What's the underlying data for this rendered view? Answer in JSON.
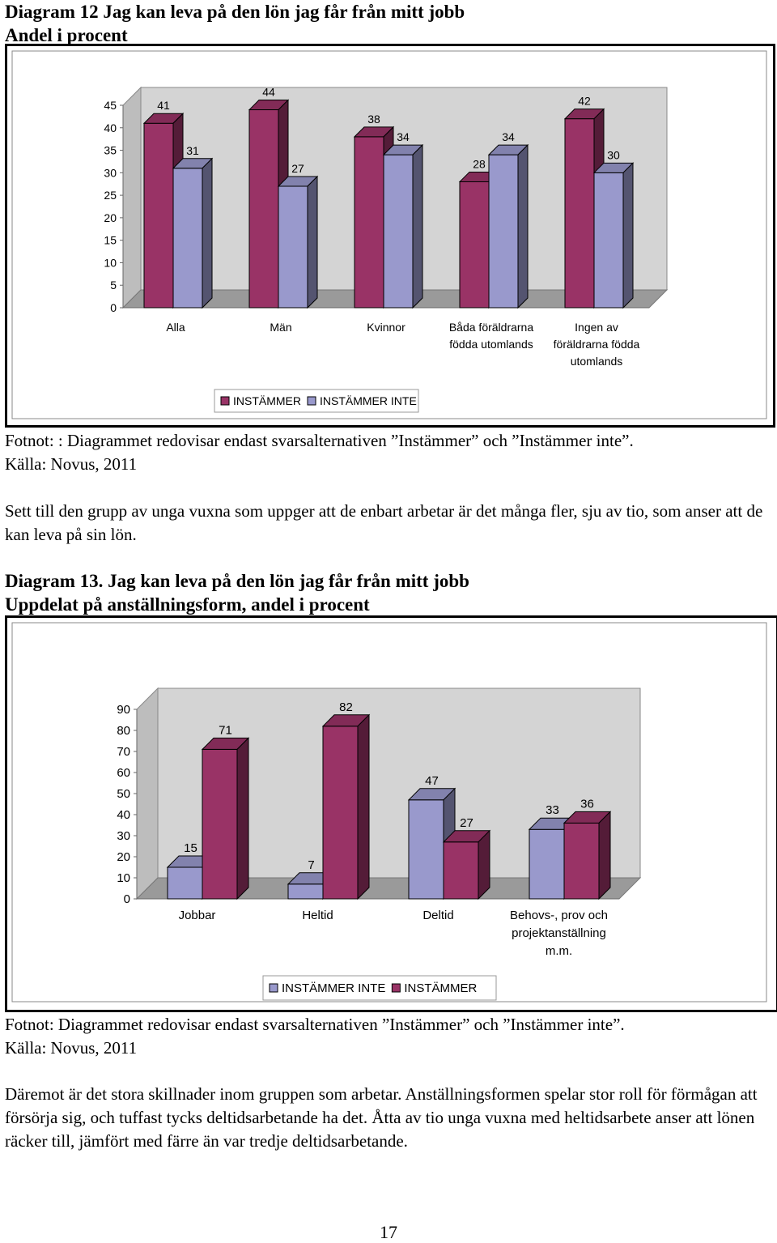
{
  "diagram12": {
    "title_line1": "Diagram 12 Jag kan leva på den lön jag får från mitt jobb",
    "title_line2": "Andel i procent",
    "footnote_line1": "Fotnot: : Diagrammet redovisar endast svarsalternativen ”Instämmer” och ”Instämmer inte”.",
    "footnote_line2": "Källa: Novus, 2011"
  },
  "paragraph1": "Sett till den grupp av unga vuxna som uppger att de enbart arbetar är det många fler, sju av tio, som anser att de kan leva på sin lön.",
  "diagram13": {
    "title_line1": "Diagram 13. Jag kan leva på den lön jag får från mitt jobb",
    "title_line2": "Uppdelat på anställningsform, andel i procent",
    "footnote_line1": "Fotnot: Diagrammet redovisar endast svarsalternativen ”Instämmer” och ”Instämmer inte”.",
    "footnote_line2": "Källa: Novus, 2011"
  },
  "paragraph2": "Däremot är det stora skillnader inom gruppen som arbetar. Anställningsformen spelar stor roll för förmågan att försörja sig, och tuffast tycks deltidsarbetande ha det. Åtta av tio unga vuxna med heltidsarbete anser att lönen räcker till, jämfört med färre än var tredje deltidsarbetande.",
  "page_number": "17",
  "colors": {
    "instammer": "#993366",
    "instammer_inte": "#9999CC",
    "plot_background": "#D4D4D4"
  },
  "chart_data": [
    {
      "type": "bar",
      "categories": [
        [
          "Alla"
        ],
        [
          "Män"
        ],
        [
          "Kvinnor"
        ],
        [
          "Båda föräldrarna",
          "födda utomlands"
        ],
        [
          "Ingen av",
          "föräldrarna födda",
          "utomlands"
        ]
      ],
      "series": [
        {
          "name": "INSTÄMMER",
          "color": "#993366",
          "values": [
            41,
            44,
            38,
            28,
            42
          ]
        },
        {
          "name": "INSTÄMMER INTE",
          "color": "#9999CC",
          "values": [
            31,
            27,
            34,
            34,
            30
          ]
        }
      ],
      "y_ticks": [
        "0",
        "5",
        "10",
        "15",
        "20",
        "25",
        "30",
        "35",
        "40",
        "45"
      ],
      "ylim": [
        0,
        45
      ],
      "legend_position": "bottom",
      "three_d": true
    },
    {
      "type": "bar",
      "categories": [
        [
          "Jobbar"
        ],
        [
          "Heltid"
        ],
        [
          "Deltid"
        ],
        [
          "Behovs-, prov och",
          "projektanställning",
          "m.m."
        ]
      ],
      "series": [
        {
          "name": "INSTÄMMER INTE",
          "color": "#9999CC",
          "values": [
            15,
            7,
            47,
            33
          ]
        },
        {
          "name": "INSTÄMMER",
          "color": "#993366",
          "values": [
            71,
            82,
            27,
            36
          ]
        }
      ],
      "y_ticks": [
        "0",
        "10",
        "20",
        "30",
        "40",
        "50",
        "60",
        "70",
        "80",
        "90"
      ],
      "ylim": [
        0,
        90
      ],
      "legend_position": "bottom",
      "three_d": true
    }
  ]
}
